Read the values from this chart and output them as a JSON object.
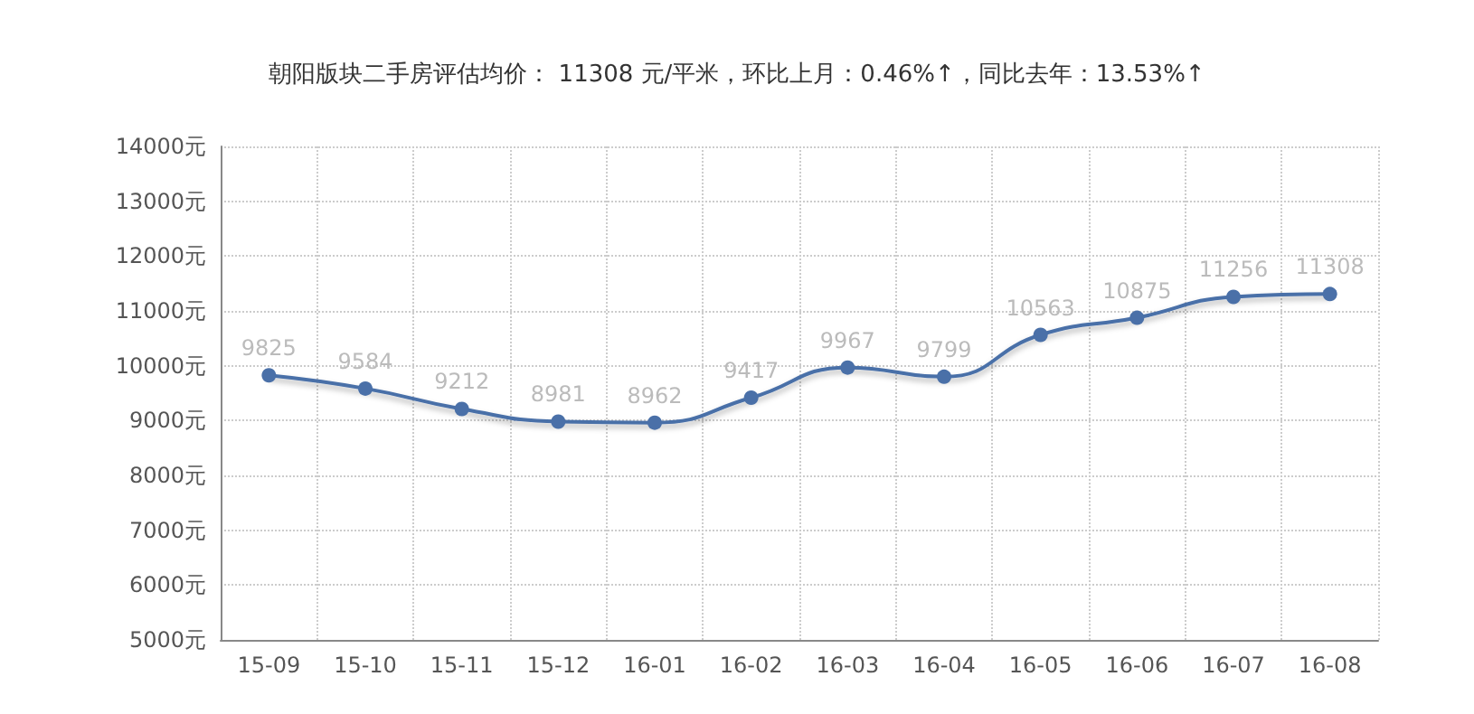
{
  "chart_data": {
    "type": "line",
    "title": "朝阳版块二手房评估均价： 11308 元/平米，环比上月：0.46%↑，同比去年：13.53%↑",
    "categories": [
      "15-09",
      "15-10",
      "15-11",
      "15-12",
      "16-01",
      "16-02",
      "16-03",
      "16-04",
      "16-05",
      "16-06",
      "16-07",
      "16-08"
    ],
    "series": [
      {
        "color": "#4a70a8",
        "values": [
          9825,
          9584,
          9212,
          8981,
          8962,
          9417,
          9967,
          9799,
          10563,
          10875,
          11256,
          11308
        ]
      }
    ],
    "ylim": [
      5000,
      14000
    ],
    "yticks": [
      {
        "value": 5000,
        "label": "5000元"
      },
      {
        "value": 6000,
        "label": "6000元"
      },
      {
        "value": 7000,
        "label": "7000元"
      },
      {
        "value": 8000,
        "label": "8000元"
      },
      {
        "value": 9000,
        "label": "9000元"
      },
      {
        "value": 10000,
        "label": "10000元"
      },
      {
        "value": 11000,
        "label": "11000元"
      },
      {
        "value": 12000,
        "label": "12000元"
      },
      {
        "value": 13000,
        "label": "13000元"
      },
      {
        "value": 14000,
        "label": "14000元"
      }
    ],
    "data_labels": true,
    "grid": true,
    "marker": "circle",
    "line_style": "solid"
  }
}
